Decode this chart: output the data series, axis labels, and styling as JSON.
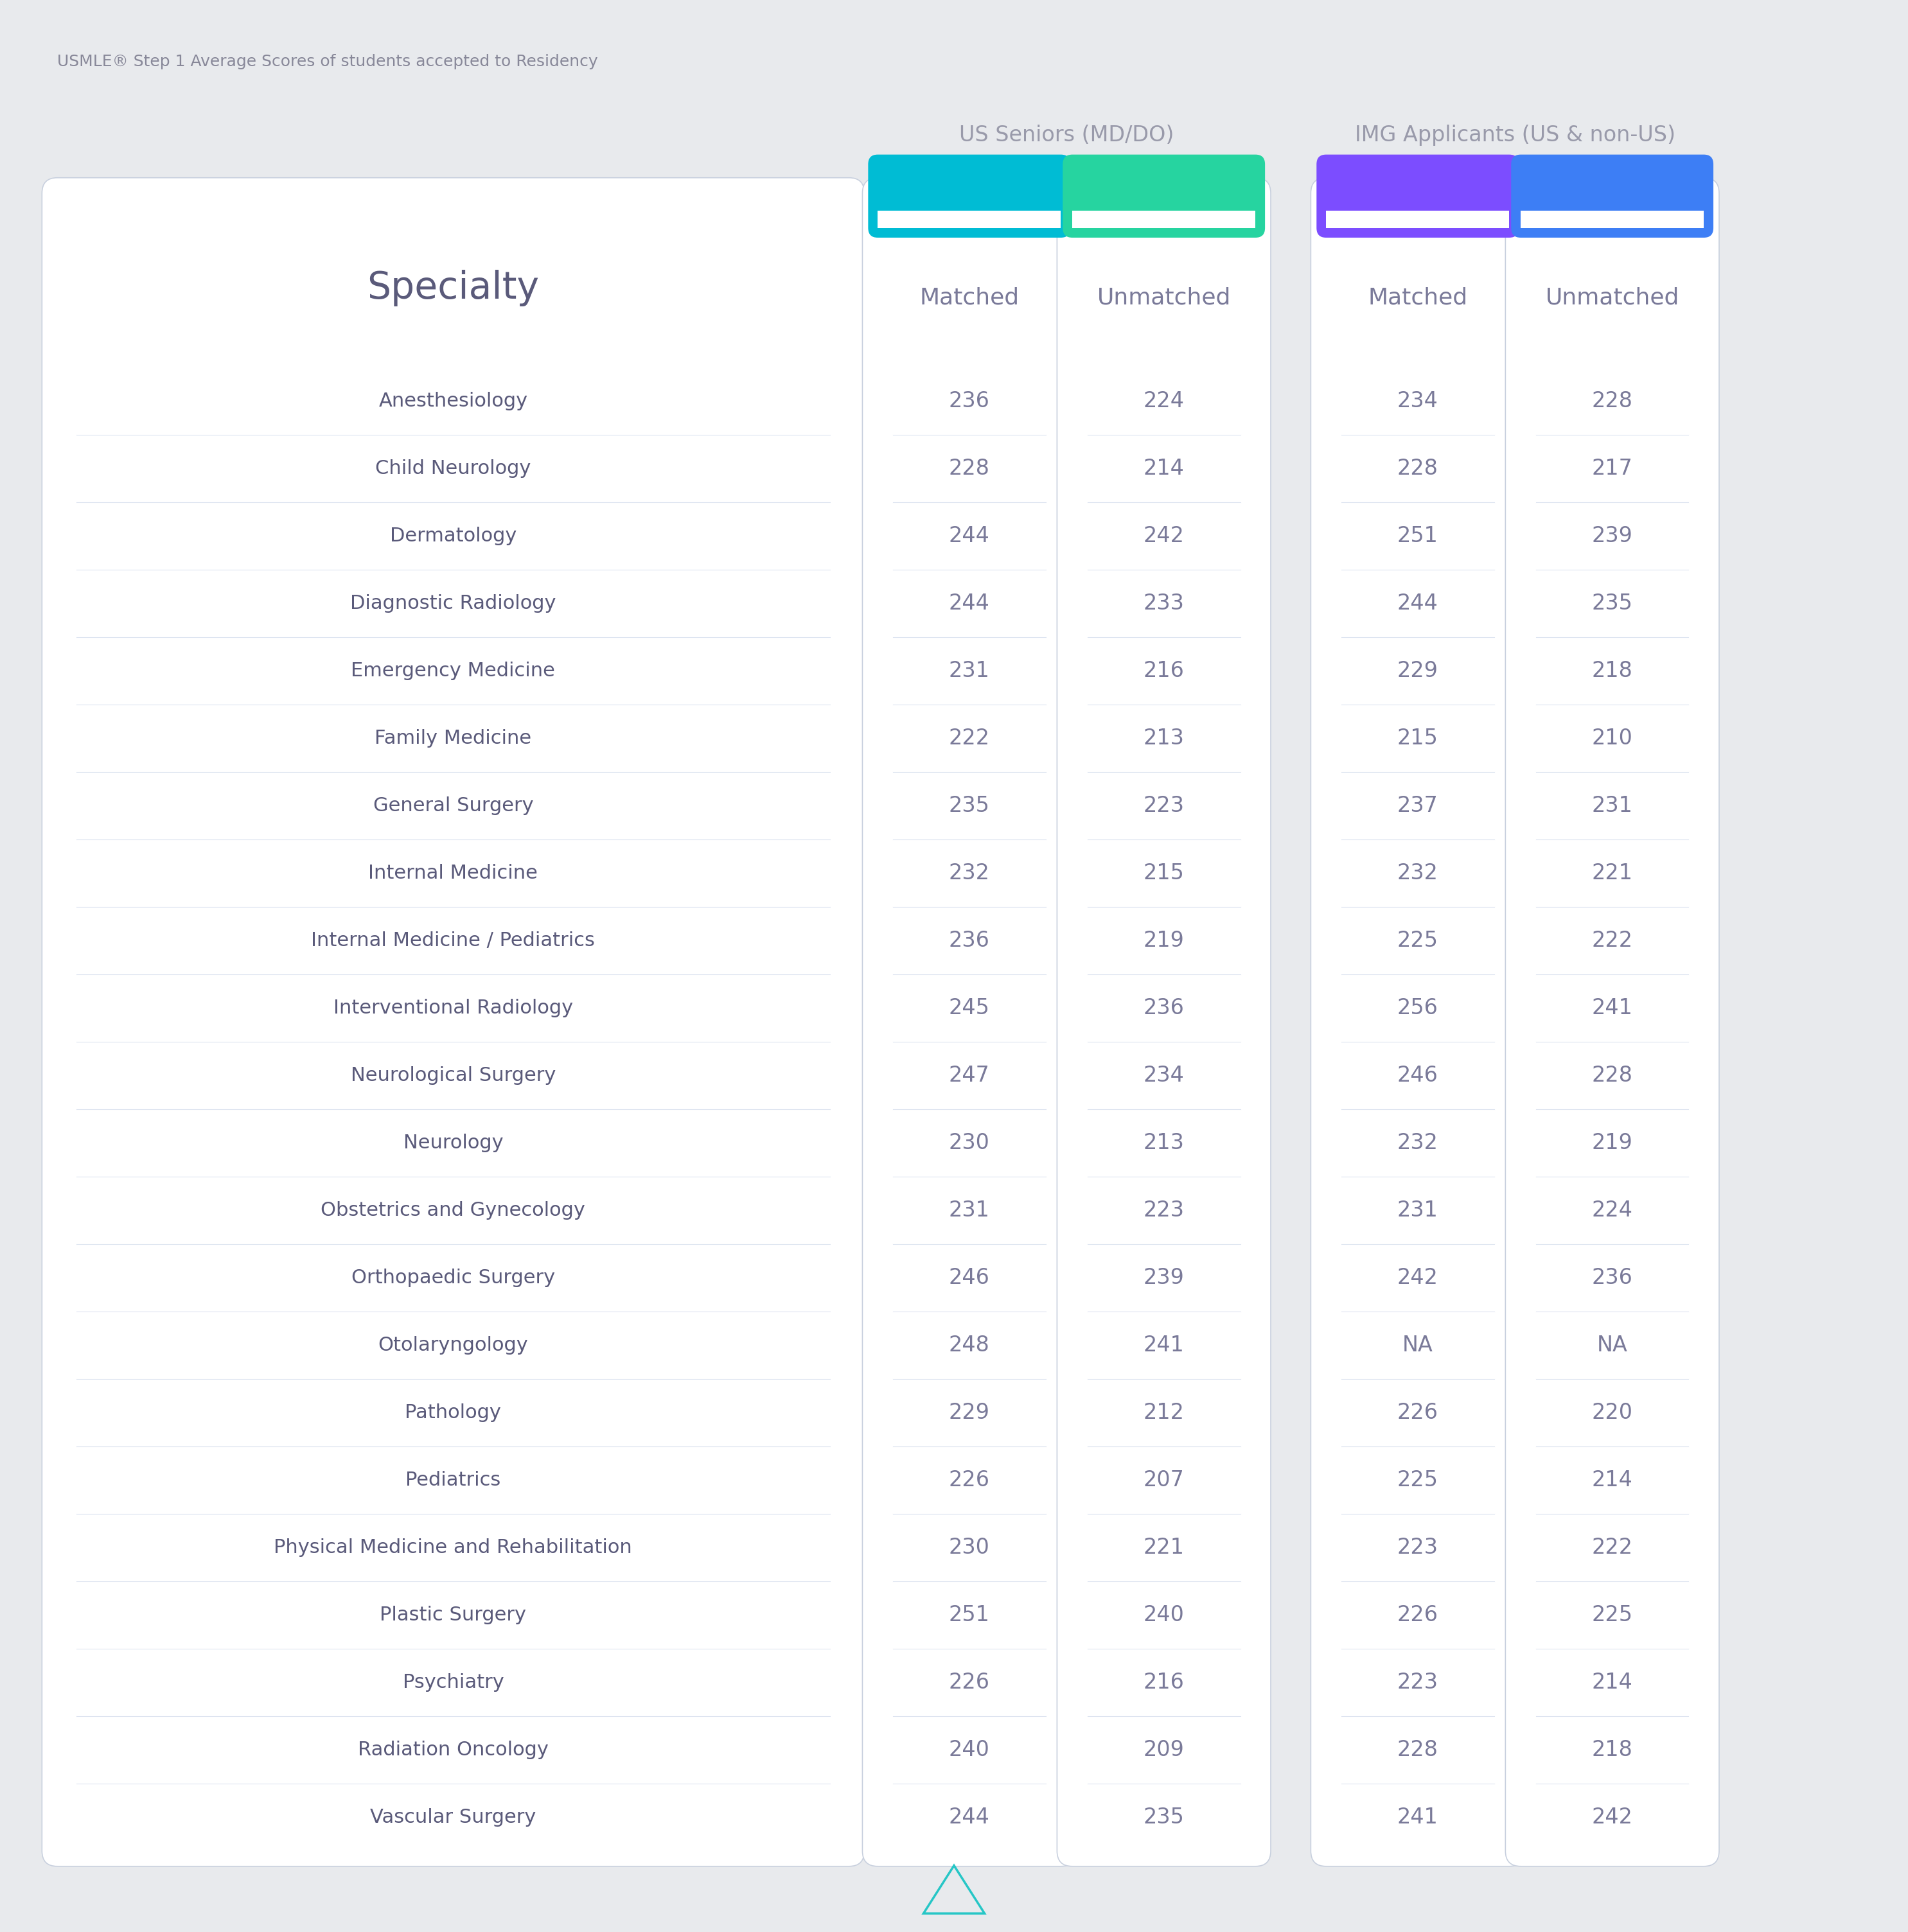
{
  "title": "USMLE® Step 1 Average Scores of students accepted to Residency",
  "group1_label": "US Seniors (MD/DO)",
  "group2_label": "IMG Applicants (US & non-US)",
  "specialties": [
    "Anesthesiology",
    "Child Neurology",
    "Dermatology",
    "Diagnostic Radiology",
    "Emergency Medicine",
    "Family Medicine",
    "General Surgery",
    "Internal Medicine",
    "Internal Medicine / Pediatrics",
    "Interventional Radiology",
    "Neurological Surgery",
    "Neurology",
    "Obstetrics and Gynecology",
    "Orthopaedic Surgery",
    "Otolaryngology",
    "Pathology",
    "Pediatrics",
    "Physical Medicine and Rehabilitation",
    "Plastic Surgery",
    "Psychiatry",
    "Radiation Oncology",
    "Vascular Surgery"
  ],
  "us_matched": [
    236,
    228,
    244,
    244,
    231,
    222,
    235,
    232,
    236,
    245,
    247,
    230,
    231,
    246,
    248,
    229,
    226,
    230,
    251,
    226,
    240,
    244
  ],
  "us_unmatched": [
    224,
    214,
    242,
    233,
    216,
    213,
    223,
    215,
    219,
    236,
    234,
    213,
    223,
    239,
    241,
    212,
    207,
    221,
    240,
    216,
    209,
    235
  ],
  "img_matched": [
    234,
    228,
    251,
    244,
    229,
    215,
    237,
    232,
    225,
    256,
    246,
    232,
    231,
    242,
    "NA",
    226,
    225,
    223,
    226,
    223,
    228,
    241
  ],
  "img_unmatched": [
    228,
    217,
    239,
    235,
    218,
    210,
    231,
    221,
    222,
    241,
    228,
    219,
    224,
    236,
    "NA",
    220,
    214,
    222,
    225,
    214,
    218,
    242
  ],
  "bg_color": "#e8eaed",
  "card_bg": "#ffffff",
  "card_border": "#c8d0de",
  "us_matched_header_color": "#00bcd4",
  "us_unmatched_header_color": "#26d4a0",
  "img_matched_header_color": "#7c4dff",
  "img_unmatched_header_color": "#3d7ef5",
  "header_text_color": "#7a7a99",
  "specialty_text_color": "#5a5a7a",
  "data_text_color": "#7a7a99",
  "title_color": "#888899",
  "row_line_color": "#dde4f0",
  "group_label_color": "#999aaa",
  "logo_color": "#26c6c6",
  "specialty_header_fontsize": 42,
  "col_header_fontsize": 26,
  "specialty_fontsize": 22,
  "data_fontsize": 24,
  "title_fontsize": 18,
  "group_label_fontsize": 24
}
